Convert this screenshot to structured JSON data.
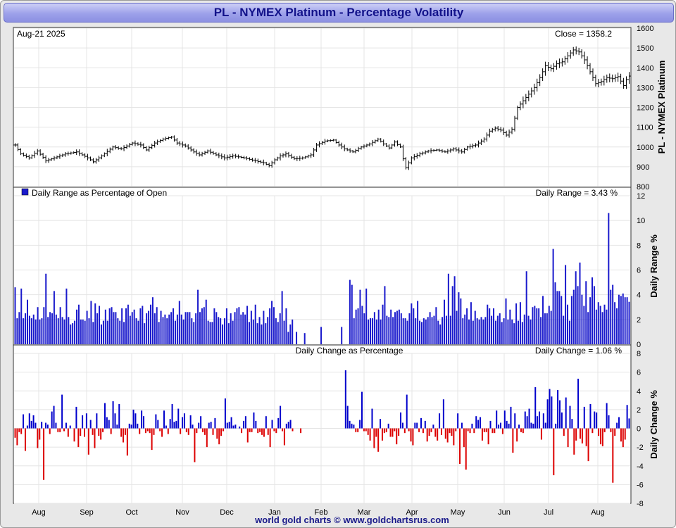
{
  "window": {
    "title": "PL  -  NYMEX Platinum - Percentage Volatility"
  },
  "footer": {
    "credit": "world gold charts © www.goldchartsrus.com"
  },
  "colors": {
    "up": "#0000cc",
    "down": "#dd0000",
    "range": "#1a1acc",
    "grid": "#e4e4e4"
  },
  "chart_data": [
    {
      "type": "ohlc",
      "title": "PL  -  NYMEX Platinum",
      "date_label": "Aug-21  2025",
      "value_label": "Close = 1358.2",
      "ylabel": "PL  -  NYMEX Platinum",
      "ylim": [
        800,
        1600
      ],
      "yticks": [
        800,
        900,
        1000,
        1100,
        1200,
        1300,
        1400,
        1500,
        1600
      ],
      "x_months": [
        "Aug",
        "Sep",
        "Oct",
        "Nov",
        "Dec",
        "Jan",
        "Feb",
        "Mar",
        "Apr",
        "May",
        "Jun",
        "Jul",
        "Aug"
      ],
      "anchor_points": [
        [
          0,
          1010
        ],
        [
          2,
          965
        ],
        [
          5,
          945
        ],
        [
          8,
          980
        ],
        [
          11,
          930
        ],
        [
          14,
          945
        ],
        [
          18,
          965
        ],
        [
          22,
          975
        ],
        [
          26,
          945
        ],
        [
          28,
          925
        ],
        [
          31,
          955
        ],
        [
          35,
          1000
        ],
        [
          38,
          990
        ],
        [
          42,
          1020
        ],
        [
          45,
          1010
        ],
        [
          47,
          985
        ],
        [
          50,
          1020
        ],
        [
          53,
          1040
        ],
        [
          56,
          1050
        ],
        [
          58,
          1020
        ],
        [
          61,
          1005
        ],
        [
          64,
          975
        ],
        [
          66,
          960
        ],
        [
          69,
          980
        ],
        [
          72,
          960
        ],
        [
          75,
          945
        ],
        [
          78,
          955
        ],
        [
          82,
          945
        ],
        [
          86,
          930
        ],
        [
          89,
          920
        ],
        [
          91,
          905
        ],
        [
          93,
          935
        ],
        [
          95,
          955
        ],
        [
          97,
          965
        ],
        [
          100,
          940
        ],
        [
          103,
          945
        ],
        [
          106,
          960
        ],
        [
          108,
          1010
        ],
        [
          111,
          1030
        ],
        [
          114,
          1035
        ],
        [
          116,
          1010
        ],
        [
          118,
          990
        ],
        [
          121,
          975
        ],
        [
          124,
          1000
        ],
        [
          127,
          1015
        ],
        [
          130,
          1040
        ],
        [
          132,
          1015
        ],
        [
          134,
          995
        ],
        [
          136,
          1025
        ],
        [
          138,
          1000
        ],
        [
          139,
          940
        ],
        [
          140,
          895
        ],
        [
          142,
          945
        ],
        [
          145,
          965
        ],
        [
          148,
          980
        ],
        [
          151,
          985
        ],
        [
          154,
          975
        ],
        [
          157,
          990
        ],
        [
          160,
          975
        ],
        [
          162,
          1000
        ],
        [
          165,
          1010
        ],
        [
          168,
          1040
        ],
        [
          170,
          1080
        ],
        [
          172,
          1095
        ],
        [
          174,
          1085
        ],
        [
          176,
          1060
        ],
        [
          178,
          1090
        ],
        [
          180,
          1200
        ],
        [
          183,
          1250
        ],
        [
          186,
          1300
        ],
        [
          188,
          1350
        ],
        [
          190,
          1410
        ],
        [
          192,
          1395
        ],
        [
          194,
          1420
        ],
        [
          196,
          1430
        ],
        [
          198,
          1460
        ],
        [
          200,
          1490
        ],
        [
          202,
          1480
        ],
        [
          204,
          1440
        ],
        [
          206,
          1380
        ],
        [
          208,
          1320
        ],
        [
          210,
          1330
        ],
        [
          212,
          1350
        ],
        [
          214,
          1345
        ],
        [
          216,
          1355
        ],
        [
          218,
          1310
        ],
        [
          219,
          1340
        ],
        [
          220,
          1358
        ]
      ]
    },
    {
      "type": "bar",
      "title": "Daily Range as Percentage of Open",
      "value_label": "Daily Range = 3.43 %",
      "ylabel": "Daily Range %",
      "ylim": [
        0,
        12
      ],
      "yticks": [
        0,
        2,
        4,
        6,
        8,
        10,
        12
      ],
      "values": [
        4.6,
        2.1,
        2.6,
        4.5,
        2.1,
        2.5,
        3.6,
        2.3,
        2.1,
        2.4,
        2.0,
        3.0,
        2.0,
        2.1,
        3.0,
        5.7,
        2.2,
        2.6,
        2.5,
        4.3,
        2.4,
        2.1,
        3.0,
        2.2,
        2.0,
        4.5,
        2.2,
        1.6,
        1.7,
        1.9,
        2.8,
        3.2,
        2.0,
        2.0,
        1.9,
        2.7,
        2.1,
        3.5,
        1.8,
        3.3,
        2.5,
        3.1,
        1.6,
        1.9,
        2.8,
        1.9,
        2.9,
        3.0,
        2.6,
        2.6,
        2.1,
        1.9,
        2.9,
        1.8,
        2.9,
        3.2,
        2.3,
        2.6,
        2.8,
        2.1,
        1.9,
        2.9,
        3.1,
        1.7,
        2.5,
        2.7,
        3.2,
        3.8,
        2.5,
        3.0,
        1.8,
        2.7,
        2.2,
        2.4,
        2.1,
        2.4,
        2.6,
        2.9,
        1.9,
        2.4,
        3.5,
        2.4,
        2.0,
        2.6,
        2.6,
        2.6,
        2.1,
        1.8,
        2.5,
        4.4,
        2.6,
        2.9,
        3.0,
        3.6,
        1.9,
        1.8,
        1.8,
        2.9,
        2.6,
        2.2,
        2.1,
        1.6,
        2.1,
        2.9,
        1.7,
        2.5,
        1.9,
        2.6,
        2.9,
        3.0,
        2.4,
        2.6,
        2.4,
        3.1,
        1.8,
        2.7,
        2.0,
        3.2,
        1.7,
        2.2,
        1.6,
        2.7,
        1.7,
        2.2,
        2.9,
        3.5,
        3.0,
        2.1,
        1.8,
        2.5,
        4.3,
        1.9,
        2.9,
        1.0,
        1.6,
        2.0,
        0.0,
        1.0,
        0.0,
        0.0,
        0.0,
        0.9,
        0.0,
        0.0,
        0.0,
        0.0,
        0.0,
        0.0,
        0.0,
        1.4,
        0.0,
        0.0,
        0.0,
        0.0,
        0.0,
        0.0,
        0.0,
        0.0,
        0.0,
        1.4,
        0.0,
        0.0,
        0.0,
        5.2,
        4.8,
        2.1,
        2.8,
        2.9,
        4.4,
        3.1,
        2.5,
        4.5,
        2.0,
        2.1,
        2.1,
        2.6,
        2.0,
        2.8,
        2.0,
        3.2,
        4.7,
        2.3,
        2.2,
        2.8,
        2.2,
        2.6,
        2.7,
        2.8,
        2.5,
        2.1,
        2.1,
        1.9,
        2.5,
        3.3,
        2.9,
        2.1,
        3.5,
        1.9,
        1.8,
        2.1,
        2.0,
        2.2,
        2.6,
        2.2,
        2.3,
        3.0,
        1.9,
        1.6,
        2.2,
        3.6,
        2.3,
        5.7,
        2.3,
        4.7,
        5.5,
        2.7,
        4.2,
        3.7,
        2.1,
        2.4,
        2.9,
        2.0,
        3.4,
        1.9,
        2.7,
        2.1,
        2.0,
        2.2,
        2.0,
        2.2,
        3.2,
        2.9,
        2.3,
        2.9,
        1.9,
        2.3,
        2.5,
        1.8,
        2.1,
        3.7,
        2.0,
        2.8,
        2.0,
        1.7,
        3.3,
        1.9,
        3.4,
        1.8,
        2.4,
        5.9,
        2.3,
        2.0,
        3.0,
        3.1,
        2.9,
        2.9,
        2.2,
        3.9,
        2.5,
        2.5,
        3.1,
        2.7,
        7.7,
        5.0,
        4.3,
        4.3,
        3.9,
        2.3,
        6.4,
        3.2,
        1.9,
        3.9,
        4.4,
        5.9,
        4.7,
        6.6,
        4.0,
        3.1,
        5.1,
        2.6,
        3.8,
        5.4,
        4.7,
        2.8,
        3.4,
        3.1,
        2.6,
        3.2,
        2.8,
        10.6,
        4.4,
        4.8,
        3.4,
        2.9,
        4.0,
        3.9,
        4.1,
        3.8,
        3.8,
        3.43
      ]
    },
    {
      "type": "bar",
      "title": "Daily Change as Percentage",
      "value_label": "Daily Change = 1.06 %",
      "ylabel": "Daily Change %",
      "ylim": [
        -8,
        8
      ],
      "yticks": [
        -8,
        -6,
        -4,
        -2,
        0,
        2,
        4,
        6,
        8
      ],
      "values": [
        -1.0,
        -1.8,
        -0.4,
        -0.6,
        1.5,
        -2.4,
        0.3,
        1.6,
        0.8,
        1.4,
        0.6,
        -2.1,
        -1.2,
        0.7,
        -5.5,
        0.6,
        0.4,
        -0.6,
        1.8,
        2.4,
        0.6,
        -0.4,
        -0.4,
        3.6,
        -0.3,
        0.6,
        -0.9,
        0.3,
        0.0,
        -1.4,
        2.3,
        -2.0,
        -0.8,
        1.4,
        -0.9,
        1.6,
        -2.8,
        0.9,
        -0.7,
        -2.1,
        1.6,
        -0.8,
        -1.2,
        -0.4,
        2.7,
        1.2,
        0.9,
        -0.6,
        2.9,
        1.6,
        0.4,
        2.6,
        -0.9,
        -1.5,
        -0.7,
        -2.9,
        0.5,
        0.4,
        2.0,
        1.6,
        0.5,
        -0.6,
        1.9,
        1.3,
        -0.5,
        -0.3,
        -0.5,
        -2.3,
        -0.7,
        1.5,
        0.9,
        -0.3,
        -0.9,
        1.9,
        0.3,
        -0.6,
        1.0,
        2.6,
        0.7,
        0.8,
        2.1,
        -0.6,
        1.2,
        1.6,
        -0.4,
        -0.7,
        1.4,
        0.4,
        -3.6,
        -0.5,
        0.6,
        1.3,
        -0.4,
        -0.7,
        -2.0,
        0.6,
        0.7,
        -0.7,
        1.1,
        -1.1,
        -1.7,
        -0.8,
        -0.3,
        3.2,
        0.6,
        0.7,
        1.2,
        0.3,
        0.4,
        0.0,
        0.2,
        -0.5,
        0.8,
        1.3,
        -1.5,
        -0.4,
        -0.4,
        1.7,
        0.8,
        -0.5,
        -0.4,
        -0.7,
        -0.9,
        1.3,
        -0.7,
        -2.0,
        0.9,
        -0.3,
        -0.5,
        1.1,
        2.4,
        -0.3,
        -1.8,
        0.5,
        0.7,
        0.9,
        -0.3,
        0.0,
        0.0,
        0.0,
        -0.5,
        0.0,
        0.0,
        0.0,
        0.0,
        0.0,
        0.0,
        0.0,
        0.0,
        0.0,
        0.0,
        0.0,
        0.0,
        0.0,
        0.0,
        0.0,
        0.0,
        0.0,
        0.0,
        0.0,
        0.0,
        0.0,
        6.2,
        2.4,
        0.8,
        0.5,
        0.4,
        -0.4,
        -0.4,
        0.9,
        3.9,
        -0.3,
        -0.3,
        -0.7,
        -1.3,
        2.1,
        -2.1,
        -0.9,
        -2.5,
        1.0,
        -1.3,
        -0.5,
        -0.4,
        0.5,
        -0.9,
        -0.9,
        -0.3,
        -1.7,
        -0.8,
        1.7,
        0.6,
        -0.5,
        3.6,
        -0.3,
        -1.4,
        -1.8,
        0.6,
        0.6,
        -0.4,
        1.1,
        -0.5,
        0.8,
        -1.4,
        -0.8,
        -0.4,
        0.4,
        -0.9,
        -1.3,
        1.6,
        -0.7,
        3.1,
        -1.1,
        -1.5,
        -0.5,
        -0.8,
        -1.8,
        -0.3,
        1.6,
        -3.8,
        0.6,
        -2.0,
        -4.4,
        -0.3,
        -0.5,
        0.5,
        -0.5,
        1.3,
        0.9,
        1.2,
        -1.3,
        -0.4,
        -0.4,
        -1.7,
        0.8,
        -0.5,
        -0.5,
        1.9,
        0.4,
        0.6,
        -0.6,
        1.9,
        0.8,
        0.5,
        2.3,
        -2.6,
        1.6,
        -1.4,
        0.4,
        -0.4,
        -0.5,
        1.8,
        1.3,
        2.1,
        0.6,
        0.5,
        4.4,
        1.3,
        1.8,
        -1.2,
        1.6,
        0.6,
        3.1,
        4.2,
        3.4,
        -5.0,
        0.5,
        4.1,
        3.0,
        1.7,
        -0.8,
        3.3,
        -2.0,
        2.4,
        1.0,
        -2.8,
        -1.3,
        5.3,
        -1.1,
        -1.6,
        2.3,
        -1.9,
        -3.5,
        2.6,
        -0.5,
        1.8,
        1.7,
        -0.8,
        -1.7,
        -1.9,
        -0.4,
        2.7,
        1.4,
        -0.4,
        -5.8,
        -0.8,
        0.6,
        1.2,
        -1.4,
        -2.0,
        -1.2,
        2.5,
        1.06
      ]
    }
  ]
}
